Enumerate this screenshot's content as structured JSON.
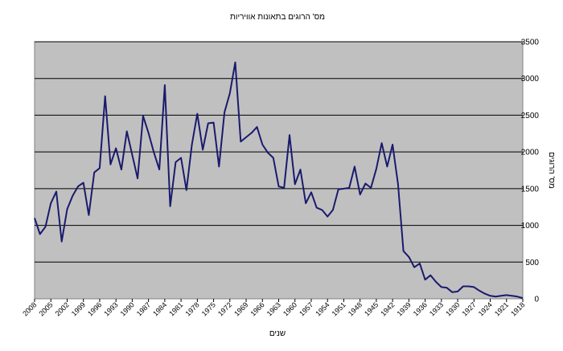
{
  "chart_data": {
    "type": "line",
    "title": "מס' הרוגים בתאונות אוויריות",
    "xlabel": "שנים",
    "ylabel": "מס' הרוגים",
    "x_direction": "descending (left to right)",
    "ylim": [
      0,
      3500
    ],
    "yticks": [
      0,
      500,
      1000,
      1500,
      2000,
      2500,
      3000,
      3500
    ],
    "xtick_labels": [
      "2008",
      "2005",
      "2002",
      "1999",
      "1996",
      "1993",
      "1990",
      "1987",
      "1984",
      "1981",
      "1978",
      "1975",
      "1972",
      "1969",
      "1966",
      "1963",
      "1960",
      "1957",
      "1954",
      "1951",
      "1948",
      "1945",
      "1942",
      "1939",
      "1936",
      "1933",
      "1930",
      "1927",
      "1924",
      "1921",
      "1918"
    ],
    "grid": "horizontal",
    "legend": "none",
    "background_color": "#c0c0c0",
    "line_color": "#1a1a6e",
    "series": [
      {
        "x": [
          2008,
          2007,
          2006,
          2005,
          2004,
          2003,
          2002,
          2001,
          2000,
          1999,
          1998,
          1997,
          1996,
          1995,
          1994,
          1993,
          1992,
          1991,
          1990,
          1989,
          1988,
          1987,
          1986,
          1985,
          1984,
          1983,
          1982,
          1981,
          1980,
          1979,
          1978,
          1977,
          1976,
          1975,
          1974,
          1973,
          1972,
          1971,
          1970,
          1969,
          1968,
          1967,
          1966,
          1965,
          1964,
          1963,
          1962,
          1961,
          1960,
          1959,
          1958,
          1957,
          1956,
          1955,
          1954,
          1953,
          1952,
          1951,
          1950,
          1949,
          1948,
          1947,
          1946,
          1945,
          1944,
          1943,
          1942,
          1941,
          1940,
          1939,
          1938,
          1937,
          1936,
          1935,
          1934,
          1933,
          1932,
          1931,
          1930,
          1929,
          1928,
          1927,
          1926,
          1925,
          1924,
          1923,
          1922,
          1921,
          1920,
          1919,
          1918
        ],
        "values": [
          1100,
          880,
          980,
          1300,
          1460,
          780,
          1220,
          1400,
          1530,
          1580,
          1140,
          1720,
          1780,
          2760,
          1830,
          2050,
          1760,
          2280,
          1960,
          1640,
          2490,
          2260,
          1990,
          1760,
          2910,
          1260,
          1860,
          1920,
          1480,
          2100,
          2520,
          2030,
          2390,
          2400,
          1800,
          2540,
          2800,
          3220,
          2140,
          2200,
          2260,
          2340,
          2100,
          1990,
          1920,
          1530,
          1510,
          2230,
          1560,
          1760,
          1300,
          1450,
          1240,
          1210,
          1120,
          1210,
          1490,
          1500,
          1510,
          1800,
          1420,
          1570,
          1510,
          1770,
          2120,
          1800,
          2100,
          1560,
          650,
          570,
          430,
          480,
          260,
          320,
          230,
          160,
          150,
          90,
          100,
          170,
          170,
          160,
          110,
          70,
          40,
          30,
          40,
          50,
          40,
          30,
          10
        ]
      }
    ]
  }
}
